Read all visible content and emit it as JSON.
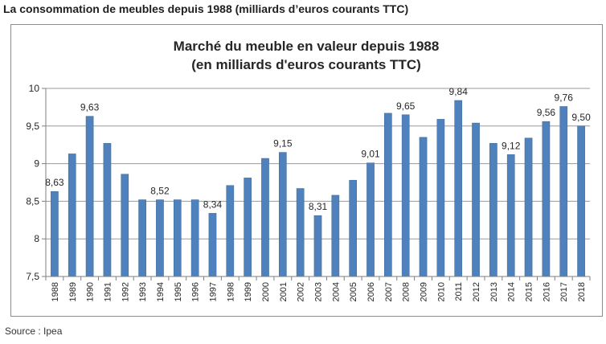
{
  "header": {
    "title": "La consommation de meubles depuis 1988 (milliards d’euros courants TTC)"
  },
  "footer": {
    "source": "Source : Ipea"
  },
  "colors": {
    "bar": "#4f81bd",
    "bar_edge": "#3c6896",
    "grid": "#9a9a9a",
    "axis": "#7f7f7f"
  },
  "chart_data": {
    "type": "bar",
    "title": "Marché du meuble en valeur depuis 1988",
    "subtitle": "(en milliards d'euros courants TTC)",
    "xlabel": "",
    "ylabel": "",
    "ylim": [
      7.5,
      10
    ],
    "grid": true,
    "legend": "none",
    "yticks": [
      "7,5",
      "8",
      "8,5",
      "9",
      "9,5",
      "10"
    ],
    "categories": [
      "1988",
      "1989",
      "1990",
      "1991",
      "1992",
      "1993",
      "1994",
      "1995",
      "1996",
      "1997",
      "1998",
      "1999",
      "2000",
      "2001",
      "2002",
      "2003",
      "2004",
      "2005",
      "2006",
      "2007",
      "2008",
      "2009",
      "2010",
      "2011",
      "2012",
      "2013",
      "2014",
      "2015",
      "2016",
      "2017",
      "2018"
    ],
    "values": [
      8.63,
      9.13,
      9.63,
      9.27,
      8.86,
      8.52,
      8.52,
      8.52,
      8.52,
      8.34,
      8.71,
      8.81,
      9.07,
      9.15,
      8.67,
      8.31,
      8.58,
      8.78,
      9.01,
      9.67,
      9.65,
      9.35,
      9.59,
      9.84,
      9.54,
      9.27,
      9.12,
      9.34,
      9.56,
      9.76,
      9.5
    ],
    "data_labels": [
      {
        "category": "1988",
        "text": "8,63"
      },
      {
        "category": "1990",
        "text": "9,63"
      },
      {
        "category": "1994",
        "text": "8,52"
      },
      {
        "category": "1997",
        "text": "8,34"
      },
      {
        "category": "2001",
        "text": "9,15"
      },
      {
        "category": "2003",
        "text": "8,31"
      },
      {
        "category": "2006",
        "text": "9,01"
      },
      {
        "category": "2008",
        "text": "9,65"
      },
      {
        "category": "2011",
        "text": "9,84"
      },
      {
        "category": "2014",
        "text": "9,12"
      },
      {
        "category": "2016",
        "text": "9,56"
      },
      {
        "category": "2017",
        "text": "9,76"
      },
      {
        "category": "2018",
        "text": "9,50"
      }
    ]
  }
}
